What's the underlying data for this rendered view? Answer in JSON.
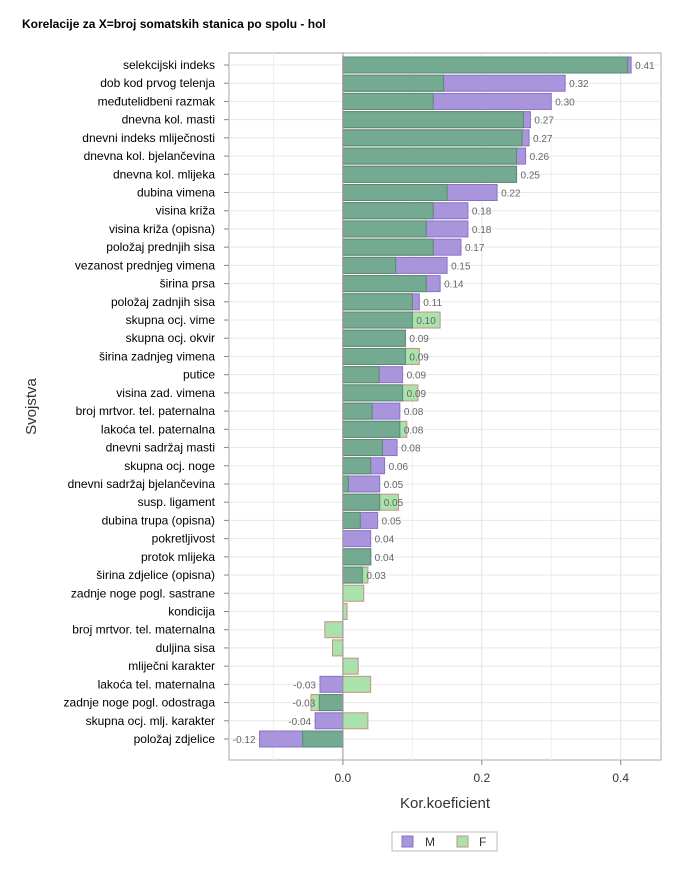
{
  "chart_data": {
    "type": "bar",
    "orientation": "horizontal",
    "title": "Korelacije za X=broj somatskih stanica po spolu - hol",
    "xlabel": "Kor.koeficient",
    "ylabel": "Svojstva",
    "xlim": [
      -0.164,
      0.458
    ],
    "xticks": [
      "0.0",
      "0.2",
      "0.4"
    ],
    "xtick_values": [
      0.0,
      0.2,
      0.4
    ],
    "grid": true,
    "legend_position": "bottom",
    "colors": {
      "M": "#a995db",
      "F": "#a9e2aa",
      "overlap": "#73aa91"
    },
    "categories": [
      "selekcijski indeks",
      "dob kod prvog telenja",
      "međutelidbeni razmak",
      "dnevna kol. masti",
      "dnevni indeks mliječnosti",
      "dnevna kol. bjelančevina",
      "dnevna kol. mlijeka",
      "dubina vimena",
      "visina križa",
      "visina križa (opisna)",
      "položaj prednjih sisa",
      "vezanost prednjeg vimena",
      "širina prsa",
      "položaj zadnjih sisa",
      "skupna ocj. vime",
      "skupna ocj. okvir",
      "širina zadnjeg vimena",
      "putice",
      "visina zad. vimena",
      "broj mrtvor. tel. paternalna",
      "lakoća tel. paternalna",
      "dnevni sadržaj masti",
      "skupna ocj. noge",
      "dnevni sadržaj bjelančevina",
      "susp. ligament",
      "dubina trupa (opisna)",
      "pokretljivost",
      "protok mlijeka",
      "širina zdjelice (opisna)",
      "zadnje noge pogl. sastrane",
      "kondicija",
      "broj mrtvor. tel. maternalna",
      "duljina sisa",
      "mliječni karakter",
      "lakoća tel. maternalna",
      "zadnje noge pogl. odostraga",
      "skupna ocj. mlj. karakter",
      "položaj zdjelice"
    ],
    "series": [
      {
        "name": "M",
        "values": [
          0.415,
          0.32,
          0.3,
          0.27,
          0.268,
          0.263,
          0.25,
          0.222,
          0.18,
          0.18,
          0.17,
          0.15,
          0.14,
          0.11,
          0.1,
          0.09,
          0.09,
          0.086,
          0.086,
          0.082,
          0.082,
          0.078,
          0.06,
          0.053,
          0.053,
          0.05,
          0.04,
          0.04,
          0.028,
          0,
          0,
          0,
          0,
          0,
          -0.033,
          -0.034,
          -0.04,
          -0.12
        ]
      },
      {
        "name": "F",
        "values": [
          0.41,
          0.145,
          0.13,
          0.26,
          0.258,
          0.25,
          0.25,
          0.15,
          0.13,
          0.12,
          0.13,
          0.076,
          0.12,
          0.1,
          0.14,
          0.09,
          0.11,
          0.052,
          0.108,
          0.042,
          0.092,
          0.057,
          0.04,
          0.008,
          0.08,
          0.025,
          0,
          0.04,
          0.036,
          0.03,
          0.006,
          -0.026,
          -0.015,
          0.022,
          0.04,
          -0.046,
          0.036,
          -0.058
        ]
      }
    ],
    "data_labels": [
      "0.41",
      "0.32",
      "0.30",
      "0.27",
      "0.27",
      "0.26",
      "0.25",
      "0.22",
      "0.18",
      "0.18",
      "0.17",
      "0.15",
      "0.14",
      "0.11",
      "0.10",
      "0.09",
      "0.09",
      "0.09",
      "0.09",
      "0.08",
      "0.08",
      "0.08",
      "0.06",
      "0.05",
      "0.05",
      "0.05",
      "0.04",
      "0.04",
      "0.03",
      "",
      "",
      "",
      "",
      "",
      "-0.03",
      "-0.03",
      "-0.04",
      "-0.12"
    ]
  }
}
